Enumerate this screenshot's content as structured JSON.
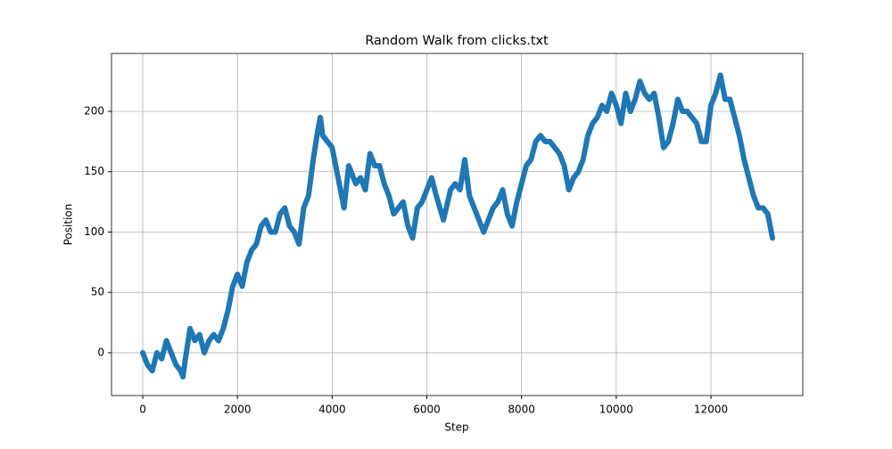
{
  "chart_data": {
    "type": "line",
    "title": "Random Walk from clicks.txt",
    "xlabel": "Step",
    "ylabel": "Position",
    "x": [
      0,
      100,
      200,
      300,
      400,
      500,
      600,
      700,
      800,
      850,
      900,
      1000,
      1100,
      1200,
      1300,
      1400,
      1500,
      1600,
      1700,
      1800,
      1900,
      2000,
      2100,
      2200,
      2300,
      2400,
      2500,
      2600,
      2700,
      2800,
      2900,
      3000,
      3100,
      3200,
      3300,
      3400,
      3500,
      3600,
      3700,
      3750,
      3800,
      3900,
      4000,
      4100,
      4250,
      4350,
      4500,
      4600,
      4700,
      4800,
      4900,
      5000,
      5100,
      5200,
      5300,
      5400,
      5500,
      5600,
      5700,
      5800,
      5900,
      6000,
      6100,
      6200,
      6350,
      6500,
      6600,
      6700,
      6800,
      6900,
      7000,
      7100,
      7200,
      7300,
      7400,
      7500,
      7600,
      7700,
      7800,
      7900,
      8000,
      8100,
      8200,
      8300,
      8400,
      8500,
      8600,
      8700,
      8800,
      8900,
      9000,
      9100,
      9200,
      9300,
      9400,
      9500,
      9600,
      9700,
      9800,
      9900,
      10000,
      10100,
      10200,
      10300,
      10400,
      10500,
      10600,
      10700,
      10800,
      10900,
      11000,
      11100,
      11200,
      11300,
      11400,
      11500,
      11600,
      11700,
      11800,
      11900,
      12000,
      12100,
      12200,
      12300,
      12400,
      12500,
      12600,
      12700,
      12800,
      12900,
      13000,
      13100,
      13200,
      13300
    ],
    "values": [
      0,
      -10,
      -15,
      0,
      -5,
      10,
      0,
      -10,
      -15,
      -20,
      -5,
      20,
      10,
      15,
      0,
      10,
      15,
      10,
      20,
      35,
      55,
      65,
      55,
      75,
      85,
      90,
      105,
      110,
      100,
      100,
      115,
      120,
      105,
      100,
      90,
      120,
      130,
      160,
      185,
      195,
      180,
      175,
      170,
      150,
      120,
      155,
      140,
      145,
      135,
      165,
      155,
      155,
      140,
      130,
      115,
      120,
      125,
      105,
      95,
      120,
      125,
      135,
      145,
      130,
      110,
      135,
      140,
      135,
      160,
      130,
      120,
      110,
      100,
      110,
      120,
      125,
      135,
      115,
      105,
      125,
      140,
      155,
      160,
      175,
      180,
      175,
      175,
      170,
      165,
      155,
      135,
      145,
      150,
      160,
      180,
      190,
      195,
      205,
      200,
      215,
      205,
      190,
      215,
      200,
      210,
      225,
      215,
      210,
      215,
      195,
      170,
      175,
      190,
      210,
      200,
      200,
      195,
      190,
      175,
      175,
      205,
      215,
      230,
      210,
      210,
      195,
      180,
      160,
      145,
      130,
      120,
      120,
      115,
      95
    ],
    "color": "#1f77b4",
    "xlim": [
      -660,
      13940
    ],
    "ylim": [
      -35.5,
      248
    ],
    "xticks": [
      0,
      2000,
      4000,
      6000,
      8000,
      10000,
      12000
    ],
    "yticks": [
      0,
      50,
      100,
      150,
      200
    ],
    "grid": true
  }
}
